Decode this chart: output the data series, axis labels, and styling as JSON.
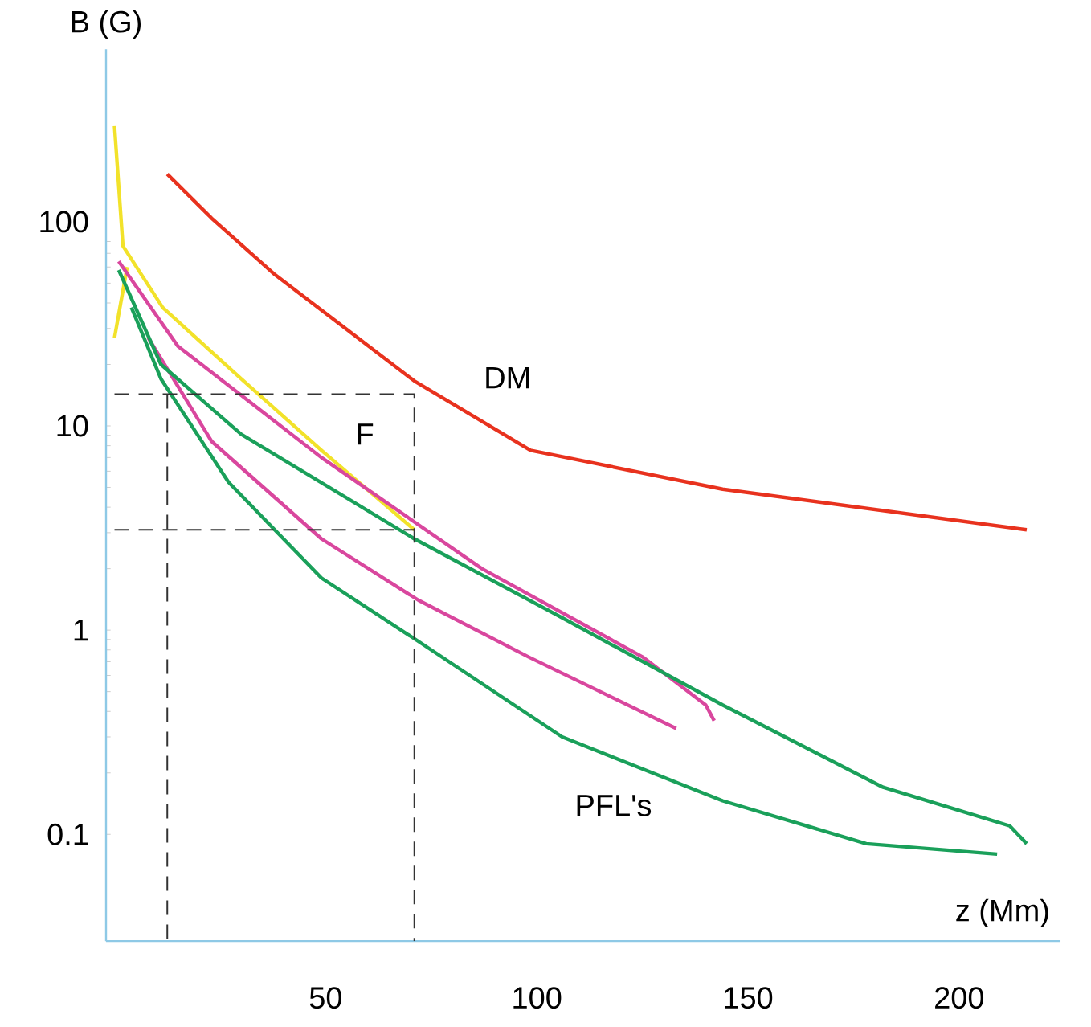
{
  "chart_data": {
    "type": "line",
    "xlabel": "z (Mm)",
    "ylabel": "B (G)",
    "log": "y",
    "marker": "none",
    "xlim": [
      -2,
      224
    ],
    "ylim": [
      0.03,
      700
    ],
    "xticks": [
      50,
      100,
      150,
      200
    ],
    "yticks": [
      0.1,
      1,
      10,
      100
    ],
    "series": [
      {
        "name": "DM",
        "color": "#e8321e",
        "x": [
          12.5,
          23,
          38,
          71,
          98.5,
          144,
          216
        ],
        "values": [
          171,
          104,
          55,
          16.6,
          7.6,
          4.9,
          3.1
        ]
      },
      {
        "name": "F",
        "color": "#f2e22a",
        "x": [
          0,
          2,
          11.4,
          30,
          49,
          71
        ],
        "values": [
          294,
          76,
          38,
          17,
          7.6,
          3.1
        ]
      },
      {
        "color": "#f2e22a",
        "x": [
          0,
          3
        ],
        "values": [
          27,
          60
        ]
      },
      {
        "color": "#d9479e",
        "x": [
          1,
          15,
          49,
          87,
          125,
          140,
          142
        ],
        "values": [
          64,
          24.6,
          7,
          2,
          0.74,
          0.43,
          0.36
        ]
      },
      {
        "color": "#d9479e",
        "x": [
          8,
          23,
          49,
          72,
          98,
          133
        ],
        "values": [
          27,
          8.4,
          2.8,
          1.4,
          0.74,
          0.33
        ]
      },
      {
        "color": "#1aa05a",
        "x": [
          1,
          11,
          30,
          71,
          106,
          144,
          182,
          212,
          216
        ],
        "values": [
          58,
          20,
          9.1,
          2.8,
          1.15,
          0.43,
          0.17,
          0.11,
          0.09
        ]
      },
      {
        "name": "PFL's",
        "color": "#1aa05a",
        "x": [
          4,
          11,
          27,
          49,
          72,
          106,
          144,
          178,
          209
        ],
        "values": [
          38,
          17,
          5.3,
          1.8,
          0.88,
          0.3,
          0.146,
          0.09,
          0.08
        ]
      },
      {
        "color": "#333333",
        "line_style": "dashed",
        "x": [
          0,
          71,
          71
        ],
        "values": [
          14.3,
          14.3,
          0.03
        ]
      },
      {
        "color": "#333333",
        "line_style": "dashed",
        "x": [
          0,
          71
        ],
        "values": [
          3.1,
          3.1
        ]
      },
      {
        "color": "#333333",
        "line_style": "dashed",
        "x": [
          12.5,
          12.5
        ],
        "values": [
          14.3,
          0.03
        ]
      }
    ]
  }
}
